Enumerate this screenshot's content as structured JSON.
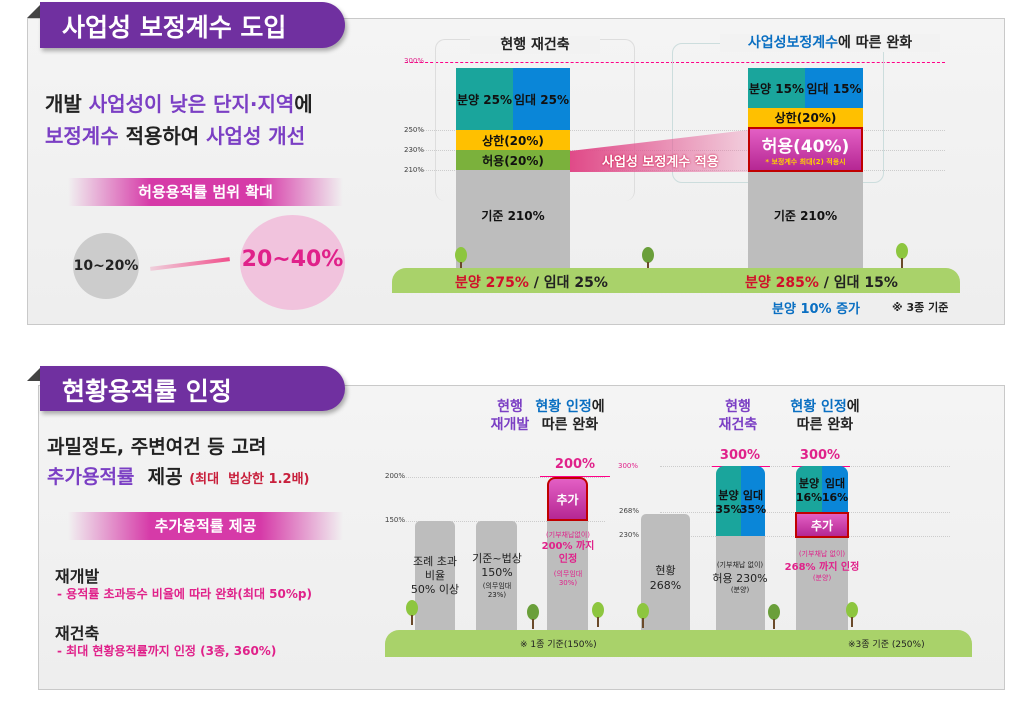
{
  "section1": {
    "title": "사업성 보정계수 도입",
    "line1_a": "개발 ",
    "line1_b": "사업성이 낮은 단지·지역",
    "line1_c": "에",
    "line2_a": "보정계수",
    "line2_b": " 적용하여 ",
    "line2_c": "사업성 개선",
    "banner": "허용용적률 범위 확대",
    "from": "10~20%",
    "to": "20~40%",
    "chart": {
      "axis_ticks": [
        "300%",
        "250%",
        "230%",
        "210%"
      ],
      "left_header": "현행  재건축",
      "right_header_a": "사업성보정계수",
      "right_header_b": "에 따른 완화",
      "left_bar": {
        "sale": "분양 25%",
        "rent": "임대 25%",
        "upper": "상한(20%)",
        "allow": "허용(20%)",
        "base": "기준 210%"
      },
      "connector": "사업성 보정계수  적용",
      "right_bar": {
        "sale": "분양 15%",
        "rent": "임대 15%",
        "upper": "상한(20%)",
        "allow": "허용(40%)",
        "allow_note": "* 보정계수 최대(2) 적용시",
        "base": "기준 210%"
      },
      "left_total_a": "분양 275%",
      "left_total_b": " / 임대 25%",
      "right_total_a": "분양 285%",
      "right_total_b": " / 임대 15%",
      "increase": "분양 10% 증가",
      "note": "※ 3종 기준"
    }
  },
  "section2": {
    "title": "현황용적률 인정",
    "line1": "과밀정도, 주변여건 등 고려",
    "line2_a": "추가용적률",
    "line2_b": "  제공 ",
    "line2_c": "(최대  법상한 1.2배)",
    "banner": "추가용적률 제공",
    "item1_title": "재개발",
    "item1_desc": "- 용적률 초과동수 비율에 따라 완화(최대 50%p)",
    "item2_title": "재건축",
    "item2_desc": "- 최대 현황용적률까지 인정 (3종, 360%)",
    "chart": {
      "ticks_left": [
        "200%",
        "150%"
      ],
      "ticks_right": [
        "300%",
        "268%",
        "230%"
      ],
      "hdr1": "현행\n재개발",
      "hdr2_a": "현황 인정",
      "hdr2_b": "에",
      "hdr2_c": "따른 완화",
      "hdr3": "현행\n재건축",
      "hdr4_a": "현황 인정",
      "hdr4_b": "에",
      "hdr4_c": "따른 완화",
      "bar1": "조례 초과\n비율\n50% 이상",
      "bar2": "기준~법상\n150%",
      "bar2_sub": "(의무임대\n23%)",
      "bar3_cap": "200%",
      "bar3_add": "추가",
      "bar3_a": "(기부채납없이)",
      "bar3_b": "200% 까지\n인정",
      "bar3_c": "(의무임대\n30%)",
      "bar4": "현황\n268%",
      "bar5_cap": "300%",
      "bar5_sale": "분양\n35%",
      "bar5_rent": "임대\n35%",
      "bar5_a": "(기부채납 없이)",
      "bar5_b": "허용 230%",
      "bar5_c": "(분양)",
      "bar6_cap": "300%",
      "bar6_sale": "분양\n16%",
      "bar6_rent": "임대\n16%",
      "bar6_add": "추가",
      "bar6_a": "(기부채납 없이)",
      "bar6_b": "268% 까지 인정",
      "bar6_c": "(분양)",
      "note_left": "※  1종 기준(150%)",
      "note_right": "※3종 기준 (250%)"
    }
  },
  "colors": {
    "purple": "#7030a0",
    "pink": "#e0218a",
    "teal": "#1aa59c",
    "blue": "#0a86d8",
    "yellow": "#ffc000",
    "green": "#7bb13c",
    "gray": "#bdbdbd",
    "red": "#c00000"
  }
}
